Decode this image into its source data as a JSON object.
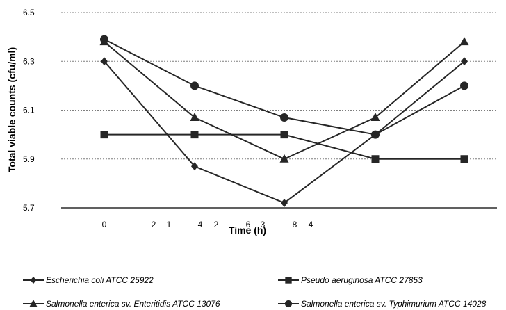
{
  "chart_data": {
    "type": "line",
    "title": "",
    "xlabel": "Time (h)",
    "ylabel": "Total viable counts (cfu/ml)",
    "ylim": [
      5.7,
      6.5
    ],
    "y_ticks": [
      "6.5",
      "6.3",
      "6.1",
      "5.9",
      "5.7"
    ],
    "x_tick_labels": [
      "0",
      "2",
      "1",
      "4",
      "2",
      "6",
      "3",
      "8",
      "4"
    ],
    "grid": "horizontal dashed",
    "legend_position": "bottom",
    "series": [
      {
        "name": "Escherichia coli ATCC 25922",
        "marker": "diamond",
        "values": [
          6.3,
          5.87,
          5.72,
          6.0,
          6.3
        ]
      },
      {
        "name": "Pseudo aeruginosa ATCC 27853",
        "marker": "square",
        "values": [
          6.0,
          6.0,
          6.0,
          5.9,
          5.9
        ]
      },
      {
        "name": "Salmonella enterica sv. Enteritidis ATCC 13076",
        "marker": "triangle",
        "values": [
          6.38,
          6.07,
          5.9,
          6.07,
          6.38
        ]
      },
      {
        "name": "Salmonella enterica sv. Typhimurium ATCC 14028",
        "marker": "circle",
        "values": [
          6.39,
          6.2,
          6.07,
          6.0,
          6.2
        ]
      }
    ],
    "colors": {
      "line": "#262626",
      "grid": "#7f7f7f",
      "axis": "#000000"
    }
  }
}
